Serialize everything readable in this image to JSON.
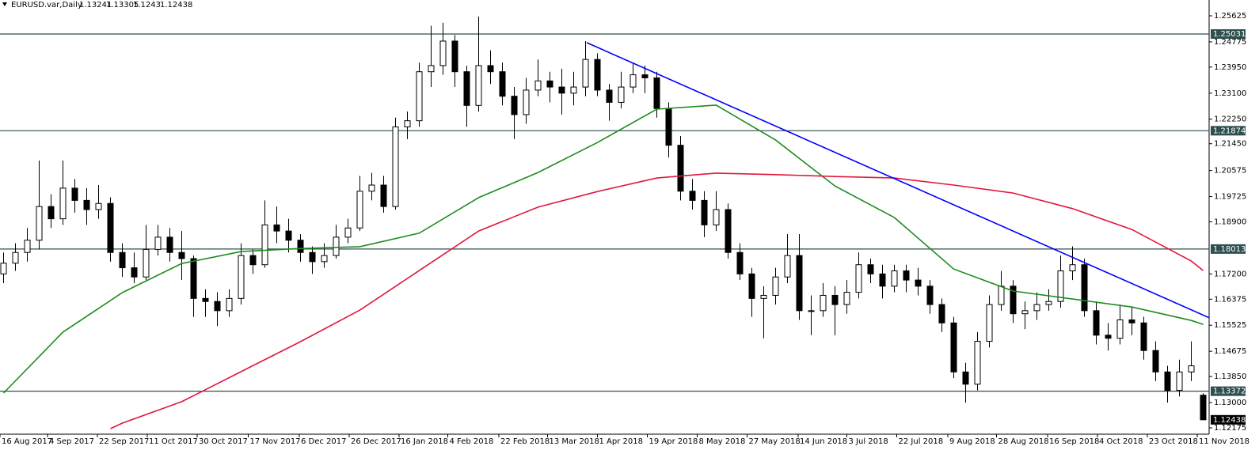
{
  "chart_data": {
    "type": "candlestick",
    "title": "EURUSD.var,Daily",
    "xlim": [
      -0.3,
      101.5
    ],
    "ylim": [
      1.12175,
      1.25625
    ],
    "yticks": [
      1.25625,
      1.24775,
      {
        "value": 1.2395,
        "label": "1.23950"
      },
      {
        "value": 1.231,
        "label": "1.23100"
      },
      {
        "value": 1.2225,
        "label": "1.22250"
      },
      {
        "value": 1.2145,
        "label": "1.21450"
      },
      1.20575,
      1.19725,
      {
        "value": 1.189,
        "label": "1.18900"
      },
      {
        "value": 1.172,
        "label": "1.17200"
      },
      1.16375,
      1.15525,
      1.14675,
      {
        "value": 1.1385,
        "label": "1.13850"
      },
      {
        "value": 1.13,
        "label": "1.13000"
      },
      1.12175
    ],
    "xticks": [
      {
        "value": -0.3,
        "label": "16 Aug 2017"
      },
      {
        "value": 3.7,
        "label": "4 Sep 2017"
      },
      {
        "value": 7.9,
        "label": "22 Sep 2017"
      },
      {
        "value": 12.1,
        "label": "11 Oct 2017"
      },
      {
        "value": 16.3,
        "label": "30 Oct 2017"
      },
      {
        "value": 20.6,
        "label": "17 Nov 2017"
      },
      {
        "value": 24.9,
        "label": "6 Dec 2017"
      },
      {
        "value": 29.1,
        "label": "26 Dec 2017"
      },
      {
        "value": 33.3,
        "label": "16 Jan 2018"
      },
      {
        "value": 37.4,
        "label": "4 Feb 2018"
      },
      {
        "value": 41.7,
        "label": "22 Feb 2018"
      },
      {
        "value": 45.8,
        "label": "13 Mar 2018"
      },
      {
        "value": 50.0,
        "label": "1 Apr 2018"
      },
      {
        "value": 54.2,
        "label": "19 Apr 2018"
      },
      {
        "value": 58.4,
        "label": "8 May 2018"
      },
      {
        "value": 62.6,
        "label": "27 May 2018"
      },
      {
        "value": 66.9,
        "label": "14 Jun 2018"
      },
      {
        "value": 71.0,
        "label": "3 Jul 2018"
      },
      {
        "value": 75.2,
        "label": "22 Jul 2018"
      },
      {
        "value": 79.5,
        "label": "9 Aug 2018"
      },
      {
        "value": 83.6,
        "label": "28 Aug 2018"
      },
      {
        "value": 87.9,
        "label": "16 Sep 2018"
      },
      {
        "value": 92.1,
        "label": "4 Oct 2018"
      },
      {
        "value": 96.3,
        "label": "23 Oct 2018"
      },
      {
        "value": 100.5,
        "label": "11 Nov 2018"
      }
    ],
    "ohlc": [
      [
        1.172,
        1.179,
        1.169,
        1.1755
      ],
      [
        1.1755,
        1.182,
        1.173,
        1.179
      ],
      [
        1.179,
        1.187,
        1.176,
        1.183
      ],
      [
        1.183,
        1.209,
        1.18,
        1.194
      ],
      [
        1.194,
        1.198,
        1.187,
        1.19
      ],
      [
        1.19,
        1.209,
        1.188,
        1.2
      ],
      [
        1.2,
        1.203,
        1.192,
        1.196
      ],
      [
        1.196,
        1.2,
        1.188,
        1.193
      ],
      [
        1.193,
        1.201,
        1.19,
        1.195
      ],
      [
        1.195,
        1.197,
        1.176,
        1.179
      ],
      [
        1.179,
        1.182,
        1.171,
        1.174
      ],
      [
        1.174,
        1.179,
        1.169,
        1.171
      ],
      [
        1.171,
        1.188,
        1.17,
        1.18
      ],
      [
        1.18,
        1.188,
        1.178,
        1.184
      ],
      [
        1.184,
        1.187,
        1.176,
        1.179
      ],
      [
        1.179,
        1.186,
        1.17,
        1.177
      ],
      [
        1.177,
        1.178,
        1.158,
        1.164
      ],
      [
        1.164,
        1.167,
        1.158,
        1.163
      ],
      [
        1.163,
        1.166,
        1.155,
        1.16
      ],
      [
        1.16,
        1.167,
        1.158,
        1.164
      ],
      [
        1.164,
        1.182,
        1.162,
        1.178
      ],
      [
        1.178,
        1.18,
        1.172,
        1.175
      ],
      [
        1.175,
        1.196,
        1.174,
        1.188
      ],
      [
        1.188,
        1.194,
        1.182,
        1.186
      ],
      [
        1.186,
        1.19,
        1.179,
        1.183
      ],
      [
        1.183,
        1.185,
        1.176,
        1.179
      ],
      [
        1.179,
        1.181,
        1.172,
        1.176
      ],
      [
        1.176,
        1.182,
        1.174,
        1.178
      ],
      [
        1.178,
        1.188,
        1.177,
        1.184
      ],
      [
        1.184,
        1.19,
        1.182,
        1.187
      ],
      [
        1.187,
        1.204,
        1.186,
        1.199
      ],
      [
        1.199,
        1.205,
        1.196,
        1.201
      ],
      [
        1.201,
        1.204,
        1.192,
        1.194
      ],
      [
        1.194,
        1.223,
        1.193,
        1.22
      ],
      [
        1.22,
        1.225,
        1.216,
        1.222
      ],
      [
        1.222,
        1.241,
        1.22,
        1.238
      ],
      [
        1.238,
        1.253,
        1.233,
        1.24
      ],
      [
        1.24,
        1.254,
        1.237,
        1.248
      ],
      [
        1.248,
        1.25,
        1.233,
        1.238
      ],
      [
        1.238,
        1.24,
        1.22,
        1.227
      ],
      [
        1.227,
        1.256,
        1.225,
        1.24
      ],
      [
        1.24,
        1.245,
        1.234,
        1.238
      ],
      [
        1.238,
        1.241,
        1.227,
        1.23
      ],
      [
        1.23,
        1.233,
        1.216,
        1.224
      ],
      [
        1.224,
        1.236,
        1.221,
        1.232
      ],
      [
        1.232,
        1.242,
        1.23,
        1.235
      ],
      [
        1.235,
        1.238,
        1.228,
        1.233
      ],
      [
        1.233,
        1.239,
        1.224,
        1.231
      ],
      [
        1.231,
        1.238,
        1.227,
        1.233
      ],
      [
        1.233,
        1.248,
        1.23,
        1.242
      ],
      [
        1.242,
        1.244,
        1.23,
        1.232
      ],
      [
        1.232,
        1.234,
        1.222,
        1.228
      ],
      [
        1.228,
        1.238,
        1.226,
        1.233
      ],
      [
        1.233,
        1.241,
        1.231,
        1.237
      ],
      [
        1.237,
        1.24,
        1.231,
        1.236
      ],
      [
        1.236,
        1.238,
        1.223,
        1.226
      ],
      [
        1.226,
        1.228,
        1.21,
        1.214
      ],
      [
        1.214,
        1.217,
        1.196,
        1.199
      ],
      [
        1.199,
        1.203,
        1.193,
        1.196
      ],
      [
        1.196,
        1.199,
        1.184,
        1.188
      ],
      [
        1.188,
        1.199,
        1.186,
        1.193
      ],
      [
        1.193,
        1.195,
        1.177,
        1.179
      ],
      [
        1.179,
        1.182,
        1.17,
        1.172
      ],
      [
        1.172,
        1.174,
        1.158,
        1.164
      ],
      [
        1.164,
        1.168,
        1.151,
        1.165
      ],
      [
        1.165,
        1.174,
        1.162,
        1.171
      ],
      [
        1.171,
        1.185,
        1.169,
        1.178
      ],
      [
        1.178,
        1.185,
        1.157,
        1.16
      ],
      [
        1.16,
        1.165,
        1.152,
        1.16
      ],
      [
        1.16,
        1.169,
        1.158,
        1.165
      ],
      [
        1.165,
        1.168,
        1.152,
        1.162
      ],
      [
        1.162,
        1.17,
        1.159,
        1.166
      ],
      [
        1.166,
        1.179,
        1.164,
        1.175
      ],
      [
        1.175,
        1.177,
        1.169,
        1.172
      ],
      [
        1.172,
        1.175,
        1.164,
        1.168
      ],
      [
        1.168,
        1.175,
        1.166,
        1.173
      ],
      [
        1.173,
        1.175,
        1.166,
        1.17
      ],
      [
        1.17,
        1.174,
        1.165,
        1.168
      ],
      [
        1.168,
        1.17,
        1.159,
        1.162
      ],
      [
        1.162,
        1.164,
        1.153,
        1.156
      ],
      [
        1.156,
        1.158,
        1.138,
        1.14
      ],
      [
        1.14,
        1.143,
        1.13,
        1.136
      ],
      [
        1.136,
        1.153,
        1.134,
        1.15
      ],
      [
        1.15,
        1.165,
        1.148,
        1.162
      ],
      [
        1.162,
        1.173,
        1.16,
        1.168
      ],
      [
        1.168,
        1.17,
        1.156,
        1.159
      ],
      [
        1.159,
        1.163,
        1.154,
        1.16
      ],
      [
        1.16,
        1.166,
        1.157,
        1.162
      ],
      [
        1.162,
        1.167,
        1.16,
        1.163
      ],
      [
        1.163,
        1.178,
        1.161,
        1.173
      ],
      [
        1.173,
        1.181,
        1.17,
        1.175
      ],
      [
        1.175,
        1.177,
        1.158,
        1.16
      ],
      [
        1.16,
        1.163,
        1.149,
        1.152
      ],
      [
        1.152,
        1.156,
        1.147,
        1.151
      ],
      [
        1.151,
        1.162,
        1.149,
        1.157
      ],
      [
        1.157,
        1.161,
        1.152,
        1.156
      ],
      [
        1.156,
        1.158,
        1.144,
        1.147
      ],
      [
        1.147,
        1.15,
        1.137,
        1.14
      ],
      [
        1.14,
        1.142,
        1.13,
        1.134
      ],
      [
        1.134,
        1.144,
        1.132,
        1.14
      ],
      [
        1.14,
        1.15,
        1.137,
        1.142
      ],
      [
        1.13241,
        1.13305,
        1.1243,
        1.12438
      ]
    ],
    "bull_color": "#ffffff",
    "bear_color": "#000000",
    "series": [
      {
        "color": "#1e8c1e",
        "x": [
          0,
          5,
          10,
          15,
          20,
          25,
          30,
          35,
          40,
          45,
          50,
          55,
          60,
          65,
          70,
          75,
          80,
          85,
          90,
          95,
          100,
          101
        ],
        "values": [
          1.1331,
          1.153,
          1.1659,
          1.1754,
          1.1793,
          1.1803,
          1.1809,
          1.1853,
          1.1969,
          1.2051,
          1.2149,
          1.2258,
          1.2271,
          1.2157,
          1.2007,
          1.1904,
          1.1736,
          1.1664,
          1.1638,
          1.1612,
          1.1568,
          1.1555
        ]
      },
      {
        "color": "#e0173c",
        "x": [
          9,
          10,
          15,
          20,
          25,
          30,
          35,
          40,
          45,
          50,
          55,
          60,
          65,
          70,
          75,
          80,
          85,
          90,
          95,
          100,
          101
        ],
        "values": [
          1.1215,
          1.1233,
          1.1303,
          1.1401,
          1.1499,
          1.1602,
          1.1731,
          1.186,
          1.1938,
          1.1989,
          1.2033,
          1.2049,
          1.2044,
          1.2038,
          1.2033,
          1.201,
          1.1984,
          1.1933,
          1.1865,
          1.1762,
          1.1731
        ]
      }
    ],
    "trendline": {
      "color": "#0000ff",
      "x": [
        49.1,
        101.5
      ],
      "values": [
        1.2475,
        1.1577
      ]
    },
    "levels": [
      1.25031,
      1.21874,
      1.18013,
      1.13372
    ],
    "level_color": "#2f4f4f"
  }
}
